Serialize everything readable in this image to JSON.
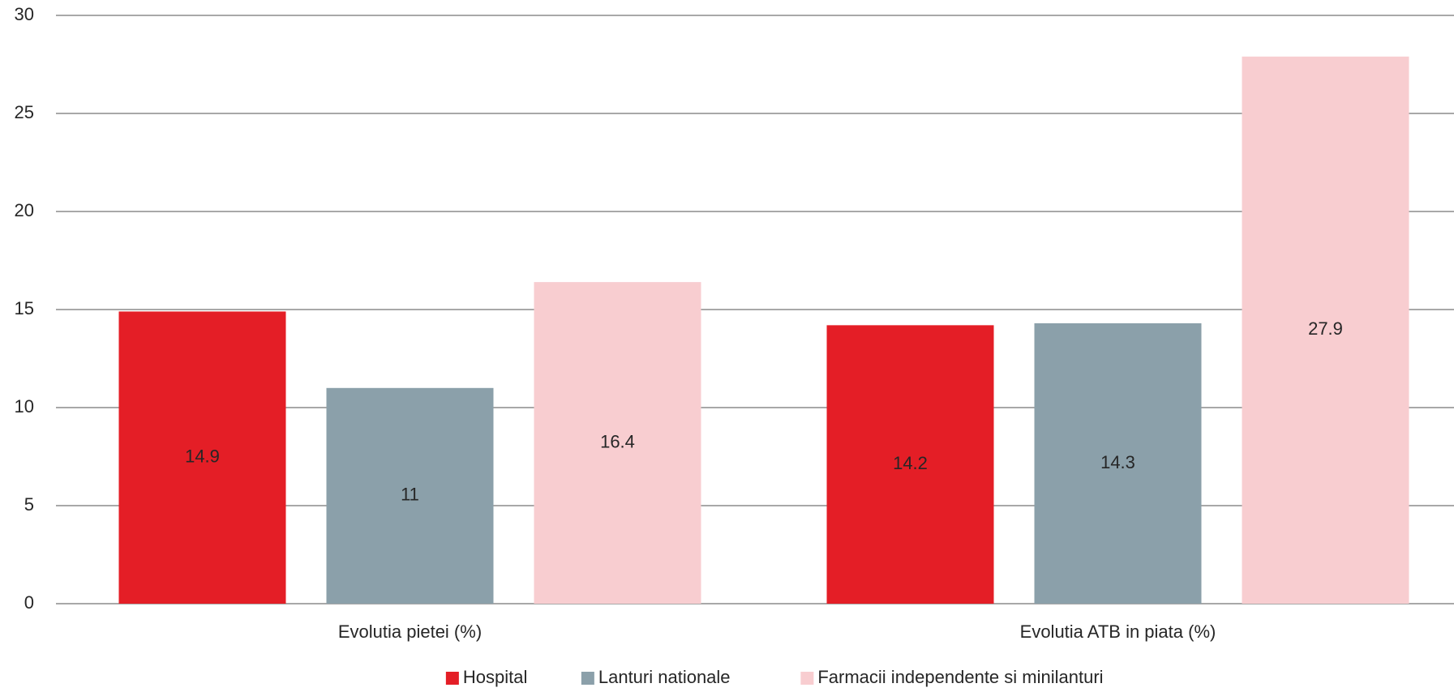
{
  "chart_data": {
    "type": "bar",
    "categories": [
      "Evolutia pietei (%)",
      "Evolutia ATB in piata (%)"
    ],
    "series": [
      {
        "name": "Hospital",
        "color": "#e41e26",
        "values": [
          14.9,
          14.2
        ]
      },
      {
        "name": "Lanturi nationale",
        "color": "#8ba0aa",
        "values": [
          11,
          14.3
        ]
      },
      {
        "name": "Farmacii independente si minilanturi",
        "color": "#f8cdd0",
        "values": [
          16.4,
          27.9
        ]
      }
    ],
    "ylim": [
      0,
      30
    ],
    "yticks": [
      0,
      5,
      10,
      15,
      20,
      25,
      30
    ],
    "grid": true,
    "legend": "bottom"
  }
}
